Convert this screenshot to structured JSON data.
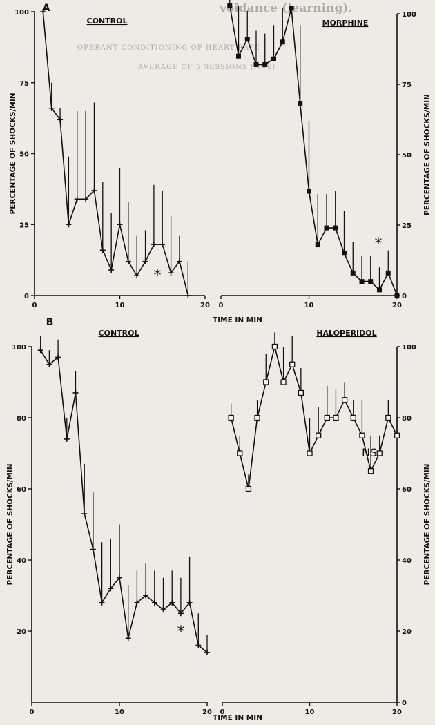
{
  "page_header": {
    "fragment": "voidance (learning).",
    "caption_lines": [
      "OPERANT CONDITIONING OF HEART RATE",
      "AVERAGE OF 5 SESSIONS (N=6)"
    ]
  },
  "chart_data": [
    {
      "id": "A-left",
      "panel": "A",
      "type": "line",
      "title": "CONTROL",
      "xlabel": "TIME IN MIN",
      "ylabel": "PERCENTAGE OF SHOCKS/MIN",
      "xlim": [
        0,
        20
      ],
      "ylim": [
        0,
        100
      ],
      "xticks": [
        "0",
        "10",
        "20"
      ],
      "yticks": [
        "0",
        "25",
        "50",
        "75",
        "100"
      ],
      "ytick_side": "left",
      "marker": "plus",
      "annotation": "*",
      "series": [
        {
          "x": [
            1,
            2,
            3,
            4,
            5,
            6,
            7,
            8,
            9,
            10,
            11,
            12,
            13,
            14,
            15,
            16,
            17,
            18
          ],
          "y": [
            100,
            66,
            62,
            25,
            34,
            34,
            37,
            16,
            9,
            25,
            12,
            7,
            12,
            18,
            18,
            8,
            12,
            0
          ],
          "err": [
            0,
            9,
            4,
            24,
            31,
            31,
            31,
            24,
            20,
            20,
            21,
            14,
            11,
            21,
            19,
            20,
            9,
            12
          ]
        }
      ]
    },
    {
      "id": "A-right",
      "panel": "A",
      "type": "line",
      "title": "MORPHINE",
      "xlabel": "TIME IN MIN",
      "ylabel": "PERCENTAGE OF SHOCKS/MIN",
      "xlim": [
        0,
        20
      ],
      "ylim": [
        0,
        100
      ],
      "xticks": [
        "0",
        "10",
        "20"
      ],
      "yticks": [
        "0",
        "25",
        "50",
        "75",
        "100"
      ],
      "ytick_side": "right",
      "marker": "filled-square",
      "annotation": "*",
      "series": [
        {
          "x": [
            1,
            2,
            3,
            4,
            5,
            6,
            7,
            8,
            9,
            10,
            11,
            12,
            13,
            14,
            15,
            16,
            17,
            18,
            19,
            20
          ],
          "y": [
            103,
            85,
            91,
            82,
            82,
            84,
            90,
            102,
            68,
            37,
            18,
            24,
            24,
            15,
            8,
            5,
            5,
            2,
            8,
            0
          ],
          "err": [
            14,
            18,
            10,
            12,
            11,
            12,
            12,
            0,
            28,
            25,
            18,
            12,
            13,
            15,
            11,
            9,
            9,
            8,
            8,
            0
          ]
        }
      ]
    },
    {
      "id": "B-left",
      "panel": "B",
      "type": "line",
      "title": "CONTROL",
      "xlabel": "TIME IN MIN",
      "ylabel": "PERCENTAGE OF SHOCKS/MIN",
      "xlim": [
        0,
        20
      ],
      "ylim": [
        0,
        100
      ],
      "xticks": [
        "0",
        "10",
        "20"
      ],
      "yticks": [
        "20",
        "40",
        "60",
        "80",
        "100"
      ],
      "ytick_side": "left",
      "marker": "plus",
      "annotation": "*",
      "series": [
        {
          "x": [
            1,
            2,
            3,
            4,
            5,
            6,
            7,
            8,
            9,
            10,
            11,
            12,
            13,
            14,
            15,
            16,
            17,
            18,
            19,
            20
          ],
          "y": [
            99,
            95,
            97,
            74,
            87,
            53,
            43,
            28,
            32,
            35,
            18,
            28,
            30,
            28,
            26,
            28,
            25,
            28,
            16,
            14
          ],
          "err": [
            4,
            4,
            5,
            6,
            6,
            14,
            16,
            17,
            14,
            15,
            15,
            9,
            9,
            9,
            9,
            9,
            10,
            13,
            9,
            5
          ]
        }
      ]
    },
    {
      "id": "B-right",
      "panel": "B",
      "type": "line",
      "title": "HALOPERIDOL",
      "xlabel": "TIME IN MIN",
      "ylabel": "PERCENTAGE OF SHOCKS/MIN",
      "xlim": [
        0,
        20
      ],
      "ylim": [
        0,
        100
      ],
      "xticks": [
        "0",
        "10",
        "20"
      ],
      "yticks": [
        "0",
        "20",
        "40",
        "60",
        "80",
        "100"
      ],
      "ytick_side": "right",
      "marker": "open-square",
      "annotation": "NS",
      "series": [
        {
          "x": [
            1,
            2,
            3,
            4,
            5,
            6,
            7,
            8,
            9,
            10,
            11,
            12,
            13,
            14,
            15,
            16,
            17,
            18,
            19,
            20
          ],
          "y": [
            80,
            70,
            60,
            80,
            90,
            100,
            90,
            95,
            87,
            70,
            75,
            80,
            80,
            85,
            80,
            75,
            65,
            70,
            80,
            75
          ],
          "err": [
            4,
            5,
            4,
            5,
            8,
            4,
            10,
            8,
            7,
            10,
            8,
            9,
            8,
            5,
            5,
            10,
            10,
            5,
            5,
            5
          ]
        }
      ]
    }
  ]
}
